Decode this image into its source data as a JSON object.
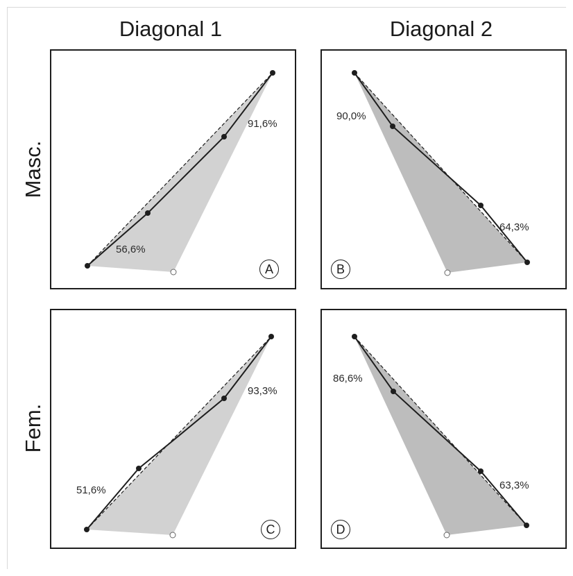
{
  "columns": [
    "Diagonal 1",
    "Diagonal 2"
  ],
  "rows": [
    "Masc.",
    "Fem."
  ],
  "colors": {
    "fill_light": "#d2d2d2",
    "fill_dark": "#bdbdbd",
    "line": "#1e1e1e"
  },
  "panels": [
    {
      "letter": "A",
      "label_1": "91,6%",
      "label_2": "56,6%"
    },
    {
      "letter": "B",
      "label_1": "90,0%",
      "label_2": "64,3%"
    },
    {
      "letter": "C",
      "label_1": "93,3%",
      "label_2": "51,6%"
    },
    {
      "letter": "D",
      "label_1": "86,6%",
      "label_2": "63,3%"
    }
  ]
}
